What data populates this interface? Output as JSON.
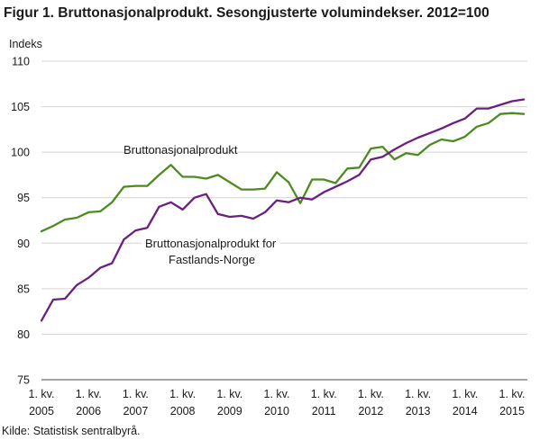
{
  "chart_data": {
    "type": "line",
    "title": "Figur 1. Bruttonasjonalprodukt. Sesongjusterte volumindekser. 2012=100",
    "ylabel": "Indeks",
    "xlabel": "",
    "ylim": [
      75,
      110
    ],
    "yticks": [
      75,
      80,
      85,
      90,
      95,
      100,
      105,
      110
    ],
    "grid": true,
    "x_tick_labels": [
      {
        "top": "1. kv.",
        "bottom": "2005",
        "q": 0
      },
      {
        "top": "1. kv.",
        "bottom": "2006",
        "q": 4
      },
      {
        "top": "1. kv.",
        "bottom": "2007",
        "q": 8
      },
      {
        "top": "1. kv.",
        "bottom": "2008",
        "q": 12
      },
      {
        "top": "1. kv.",
        "bottom": "2009",
        "q": 16
      },
      {
        "top": "1. kv.",
        "bottom": "2010",
        "q": 20
      },
      {
        "top": "1. kv.",
        "bottom": "2011",
        "q": 24
      },
      {
        "top": "1. kv.",
        "bottom": "2012",
        "q": 28
      },
      {
        "top": "1. kv.",
        "bottom": "2013",
        "q": 32
      },
      {
        "top": "1. kv.",
        "bottom": "2014",
        "q": 36
      },
      {
        "top": "1. kv.",
        "bottom": "2015",
        "q": 40
      }
    ],
    "series": [
      {
        "name": "Bruttonasjonalprodukt",
        "color": "#4c8c1f",
        "values": [
          91.3,
          91.9,
          92.6,
          92.8,
          93.4,
          93.5,
          94.5,
          96.2,
          96.3,
          96.3,
          97.5,
          98.6,
          97.3,
          97.3,
          97.1,
          97.5,
          96.7,
          95.9,
          95.9,
          96.0,
          97.8,
          96.7,
          94.4,
          97.0,
          97.0,
          96.6,
          98.2,
          98.3,
          100.4,
          100.6,
          99.2,
          99.9,
          99.7,
          100.8,
          101.4,
          101.2,
          101.7,
          102.8,
          103.2,
          104.2,
          104.3,
          104.2
        ]
      },
      {
        "name": "Bruttonasjonalprodukt  for Fastlands-Norge",
        "color": "#6b1f80",
        "values": [
          81.5,
          83.8,
          83.9,
          85.4,
          86.2,
          87.3,
          87.8,
          90.4,
          91.4,
          91.7,
          94.0,
          94.5,
          93.7,
          95.0,
          95.4,
          93.2,
          92.9,
          93.0,
          92.7,
          93.4,
          94.7,
          94.5,
          95.0,
          94.8,
          95.6,
          96.2,
          96.8,
          97.5,
          99.2,
          99.5,
          100.3,
          101.0,
          101.6,
          102.1,
          102.6,
          103.2,
          103.7,
          104.8,
          104.8,
          105.2,
          105.6,
          105.8
        ]
      }
    ],
    "annotations": [
      {
        "text": "Bruttonasjonalprodukt",
        "series": 0
      },
      {
        "text": "Bruttonasjonalprodukt  for",
        "series": 1
      },
      {
        "text": "Fastlands-Norge",
        "series": 1
      }
    ]
  },
  "source": "Kilde: Statistisk sentralbyrå."
}
